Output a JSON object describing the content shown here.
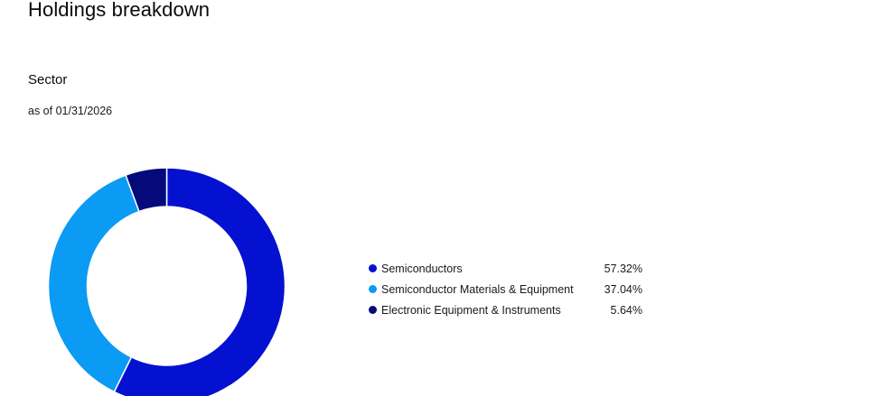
{
  "header": {
    "title": "Holdings breakdown"
  },
  "section": {
    "title": "Sector",
    "as_of": "as of 01/31/2026"
  },
  "chart_data": {
    "type": "pie",
    "title": "Sector",
    "donut": true,
    "categories": [
      "Semiconductors",
      "Semiconductor Materials & Equipment",
      "Electronic Equipment & Instruments"
    ],
    "values": [
      57.32,
      37.04,
      5.64
    ],
    "value_labels": [
      "57.32%",
      "37.04%",
      "5.64%"
    ],
    "colors": [
      "#0511d0",
      "#0b9af4",
      "#040a7a"
    ],
    "legend_position": "right"
  }
}
